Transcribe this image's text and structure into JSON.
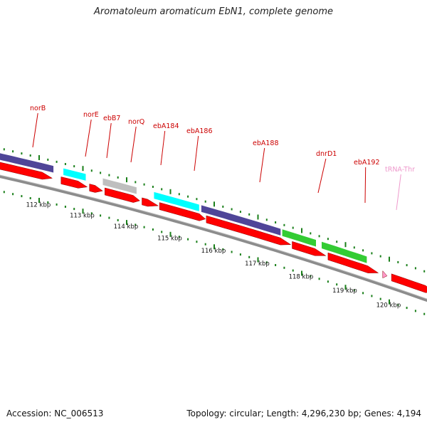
{
  "title": "Aromatoleum aromaticum EbN1, complete genome",
  "footer": {
    "accession_label": "Accession:",
    "accession": "NC_006513",
    "topology_label": "Topology:",
    "topology": "circular",
    "length_label": "Length:",
    "length": "4,296,230 bp",
    "genes_label": "Genes:",
    "genes": "4,194"
  },
  "scale": {
    "unit": "kbp",
    "labels": [
      {
        "kbp": 112,
        "text": "112 kbp"
      },
      {
        "kbp": 113,
        "text": "113 kbp"
      },
      {
        "kbp": 114,
        "text": "114 kbp"
      },
      {
        "kbp": 115,
        "text": "115 kbp"
      },
      {
        "kbp": 116,
        "text": "116 kbp"
      },
      {
        "kbp": 117,
        "text": "117 kbp"
      },
      {
        "kbp": 118,
        "text": "118 kbp"
      },
      {
        "kbp": 119,
        "text": "119 kbp"
      },
      {
        "kbp": 120,
        "text": "120 kbp"
      }
    ]
  },
  "colors": {
    "tick": "#1a7f1a",
    "label_red": "#cc0000",
    "label_trna": "#ee99cc",
    "gene_red": "#ff0000",
    "backbone": "#8c8c8c",
    "cyan": "#00ffff",
    "slate": "#4f4598",
    "gray": "#bfbfbf",
    "green": "#33cc33",
    "pink": "#ff99cc"
  },
  "feature_labels": [
    {
      "name": "norB",
      "kbp": 112.3
    },
    {
      "name": "norE",
      "kbp": 112.95
    },
    {
      "name": "ebB7",
      "kbp": 113.2
    },
    {
      "name": "norQ",
      "kbp": 113.55
    },
    {
      "name": "ebA184",
      "kbp": 114.3
    },
    {
      "name": "ebA186",
      "kbp": 114.75
    },
    {
      "name": "ebA188",
      "kbp": 116.25
    },
    {
      "name": "dnrD1",
      "kbp": 117.6
    },
    {
      "name": "ebA192",
      "kbp": 118.55
    },
    {
      "name": "tRNA-Thr",
      "kbp": 119.35,
      "style": "trna"
    }
  ],
  "annotation_tracks": [
    {
      "start": 110.9,
      "end": 112.35,
      "color": "slate"
    },
    {
      "start": 112.55,
      "end": 113.15,
      "color": "cyan"
    },
    {
      "start": 113.45,
      "end": 114.3,
      "color": "gray"
    },
    {
      "start": 114.62,
      "end": 115.7,
      "color": "cyan"
    },
    {
      "start": 115.7,
      "end": 117.55,
      "color": "slate"
    },
    {
      "start": 117.55,
      "end": 118.35,
      "color": "green"
    },
    {
      "start": 118.45,
      "end": 119.6,
      "color": "green"
    }
  ],
  "genes": [
    {
      "start": 110.9,
      "end": 112.3
    },
    {
      "start": 112.5,
      "end": 113.1
    },
    {
      "start": 113.15,
      "end": 113.45
    },
    {
      "start": 113.5,
      "end": 114.3
    },
    {
      "start": 114.35,
      "end": 114.72
    },
    {
      "start": 114.75,
      "end": 115.8
    },
    {
      "start": 115.82,
      "end": 117.75
    },
    {
      "start": 117.78,
      "end": 118.55
    },
    {
      "start": 118.6,
      "end": 119.75
    },
    {
      "start": 119.85,
      "end": 119.95,
      "color": "pink"
    },
    {
      "start": 120.05,
      "end": 121.0
    }
  ]
}
